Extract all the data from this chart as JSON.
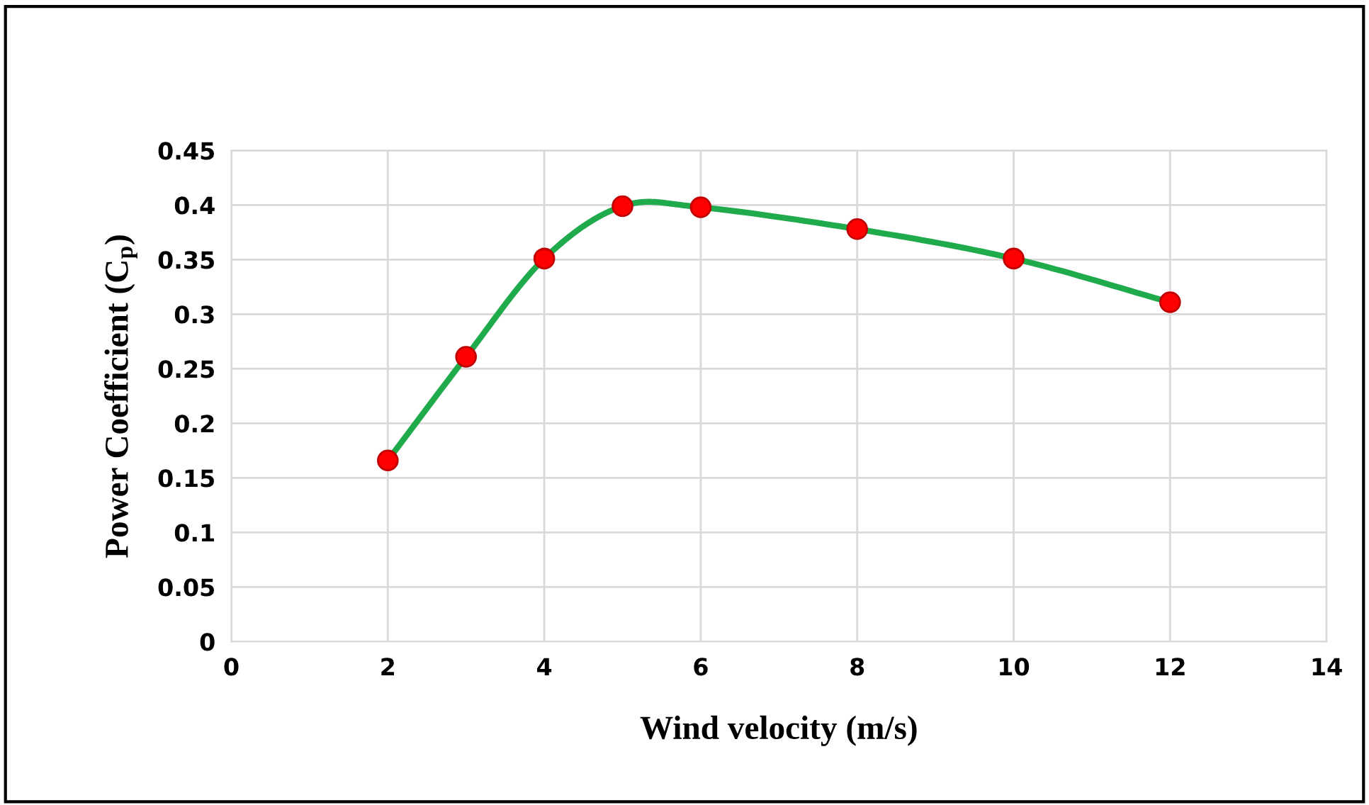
{
  "chart_data": {
    "type": "line",
    "xlabel": "Wind velocity (m/s)",
    "ylabel": "Power Coefficient (C$_{p}$)",
    "x": [
      2,
      3,
      4,
      5,
      6,
      8,
      10,
      12
    ],
    "series": [
      {
        "color": "#1faa4b",
        "colors": [
          "#ff0000",
          "#ff0000",
          "#ff0000",
          "#ff0000",
          "#ff0000",
          "#ff0000",
          "#ff0000",
          "#ff0000"
        ],
        "values": [
          0.166,
          0.261,
          0.351,
          0.399,
          0.398,
          0.378,
          0.351,
          0.311
        ]
      }
    ],
    "xlim": [
      0,
      14
    ],
    "xticks": [
      0,
      2,
      4,
      6,
      8,
      10,
      12,
      14
    ],
    "ylim": [
      0,
      0.45
    ],
    "yticks": [
      0,
      0.05,
      0.1,
      0.15,
      0.2,
      0.25,
      0.3,
      0.35,
      0.4,
      0.45
    ],
    "grid": true,
    "marker": "circle",
    "line_style": "solid",
    "legend": false
  }
}
